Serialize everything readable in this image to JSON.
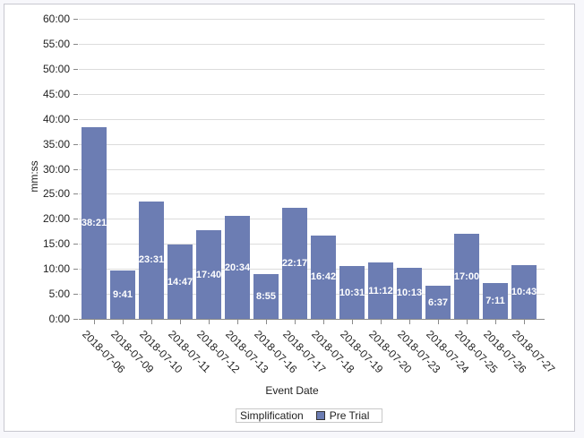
{
  "chart_data": {
    "type": "bar",
    "title": "",
    "xlabel": "Event Date",
    "ylabel": "mm:ss",
    "ylim": [
      0,
      60
    ],
    "y_unit": "minutes",
    "y_ticks": [
      "0:00",
      "5:00",
      "10:00",
      "15:00",
      "20:00",
      "25:00",
      "30:00",
      "35:00",
      "40:00",
      "45:00",
      "50:00",
      "55:00",
      "60:00"
    ],
    "grid": true,
    "legend_position": "bottom",
    "legend": {
      "title": "Simplification",
      "entries": [
        "Pre Trial"
      ]
    },
    "categories": [
      "2018-07-06",
      "2018-07-09",
      "2018-07-10",
      "2018-07-11",
      "2018-07-12",
      "2018-07-13",
      "2018-07-16",
      "2018-07-17",
      "2018-07-18",
      "2018-07-19",
      "2018-07-20",
      "2018-07-23",
      "2018-07-24",
      "2018-07-25",
      "2018-07-26",
      "2018-07-27"
    ],
    "series": [
      {
        "name": "Pre Trial",
        "color": "#6c7db3",
        "labels": [
          "38:21",
          "9:41",
          "23:31",
          "14:47",
          "17:40",
          "20:34",
          "8:55",
          "22:17",
          "16:42",
          "10:31",
          "11:12",
          "10:13",
          "6:37",
          "17:00",
          "7:11",
          "10:43"
        ],
        "values": [
          38.35,
          9.683,
          23.517,
          14.783,
          17.667,
          20.567,
          8.917,
          22.283,
          16.7,
          10.517,
          11.2,
          10.217,
          6.617,
          17.0,
          7.183,
          10.717
        ]
      }
    ]
  }
}
